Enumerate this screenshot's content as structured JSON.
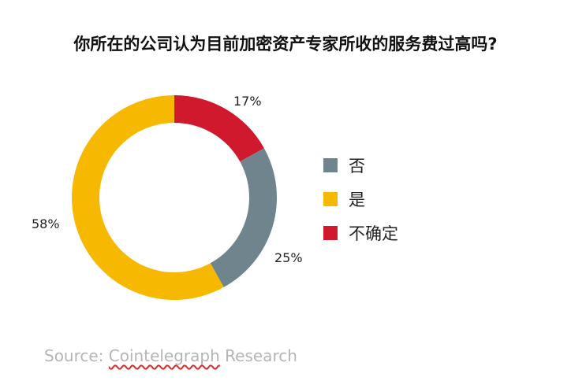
{
  "chart_data": {
    "type": "pie",
    "title": "你所在的公司认为目前加密资产专家所收的服务费过高吗?",
    "donut": true,
    "start_angle_deg": 0,
    "slices": [
      {
        "label": "不确定",
        "value": 17,
        "display": "17%",
        "color": "#d0192c"
      },
      {
        "label": "否",
        "value": 25,
        "display": "25%",
        "color": "#6f848d"
      },
      {
        "label": "是",
        "value": 58,
        "display": "58%",
        "color": "#f6b800"
      }
    ],
    "legend": {
      "placement": "right",
      "entries": [
        {
          "label": "否",
          "color": "#6f848d"
        },
        {
          "label": "是",
          "color": "#f6b800"
        },
        {
          "label": "不确定",
          "color": "#d0192c"
        }
      ]
    }
  },
  "source": {
    "prefix": "Source: ",
    "name": "Cointelegraph",
    "suffix": " Research"
  }
}
